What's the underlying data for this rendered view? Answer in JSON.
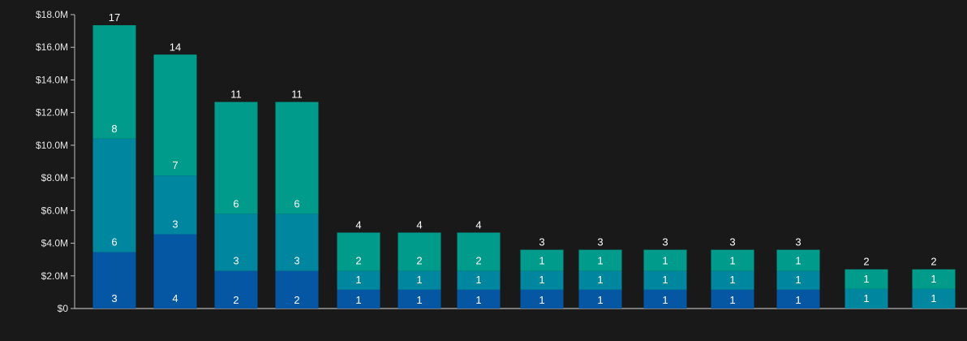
{
  "chart_data": {
    "type": "bar",
    "stacked": true,
    "title": "",
    "xlabel": "",
    "ylabel": "",
    "ylim": [
      0,
      18000000
    ],
    "y_ticks": [
      {
        "value": 0,
        "label": "$0"
      },
      {
        "value": 2000000,
        "label": "$2.0M"
      },
      {
        "value": 4000000,
        "label": "$4.0M"
      },
      {
        "value": 6000000,
        "label": "$6.0M"
      },
      {
        "value": 8000000,
        "label": "$8.0M"
      },
      {
        "value": 10000000,
        "label": "$10.0M"
      },
      {
        "value": 12000000,
        "label": "$12.0M"
      },
      {
        "value": 14000000,
        "label": "$14.0M"
      },
      {
        "value": 16000000,
        "label": "$16.0M"
      },
      {
        "value": 18000000,
        "label": "$18.0M"
      }
    ],
    "grid": false,
    "legend": "none",
    "colors": [
      "#0557a3",
      "#00869f",
      "#009b8a"
    ],
    "bars": [
      {
        "total": "17",
        "segments": [
          {
            "value": 3450000,
            "label": "3"
          },
          {
            "value": 6950000,
            "label": "6"
          },
          {
            "value": 6950000,
            "label": "8"
          }
        ]
      },
      {
        "total": "14",
        "segments": [
          {
            "value": 4550000,
            "label": "4"
          },
          {
            "value": 3600000,
            "label": "3"
          },
          {
            "value": 7400000,
            "label": "7"
          }
        ]
      },
      {
        "total": "11",
        "segments": [
          {
            "value": 2300000,
            "label": "2"
          },
          {
            "value": 3500000,
            "label": "3"
          },
          {
            "value": 6850000,
            "label": "6"
          }
        ]
      },
      {
        "total": "11",
        "segments": [
          {
            "value": 2300000,
            "label": "2"
          },
          {
            "value": 3500000,
            "label": "3"
          },
          {
            "value": 6850000,
            "label": "6"
          }
        ]
      },
      {
        "total": "4",
        "segments": [
          {
            "value": 1150000,
            "label": "1"
          },
          {
            "value": 1150000,
            "label": "1"
          },
          {
            "value": 2350000,
            "label": "2"
          }
        ]
      },
      {
        "total": "4",
        "segments": [
          {
            "value": 1150000,
            "label": "1"
          },
          {
            "value": 1150000,
            "label": "1"
          },
          {
            "value": 2350000,
            "label": "2"
          }
        ]
      },
      {
        "total": "4",
        "segments": [
          {
            "value": 1150000,
            "label": "1"
          },
          {
            "value": 1150000,
            "label": "1"
          },
          {
            "value": 2350000,
            "label": "2"
          }
        ]
      },
      {
        "total": "3",
        "segments": [
          {
            "value": 1150000,
            "label": "1"
          },
          {
            "value": 1150000,
            "label": "1"
          },
          {
            "value": 1300000,
            "label": "1"
          }
        ]
      },
      {
        "total": "3",
        "segments": [
          {
            "value": 1150000,
            "label": "1"
          },
          {
            "value": 1150000,
            "label": "1"
          },
          {
            "value": 1300000,
            "label": "1"
          }
        ]
      },
      {
        "total": "3",
        "segments": [
          {
            "value": 1150000,
            "label": "1"
          },
          {
            "value": 1150000,
            "label": "1"
          },
          {
            "value": 1300000,
            "label": "1"
          }
        ]
      },
      {
        "total": "3",
        "segments": [
          {
            "value": 1150000,
            "label": "1"
          },
          {
            "value": 1150000,
            "label": "1"
          },
          {
            "value": 1300000,
            "label": "1"
          }
        ]
      },
      {
        "total": "3",
        "segments": [
          {
            "value": 1150000,
            "label": "1"
          },
          {
            "value": 1150000,
            "label": "1"
          },
          {
            "value": 1300000,
            "label": "1"
          }
        ]
      },
      {
        "total": "2",
        "segments": [
          {
            "value": 0,
            "label": ""
          },
          {
            "value": 1200000,
            "label": "1"
          },
          {
            "value": 1200000,
            "label": "1"
          }
        ]
      },
      {
        "total": "2",
        "segments": [
          {
            "value": 0,
            "label": ""
          },
          {
            "value": 1200000,
            "label": "1"
          },
          {
            "value": 1200000,
            "label": "1"
          }
        ]
      }
    ]
  }
}
